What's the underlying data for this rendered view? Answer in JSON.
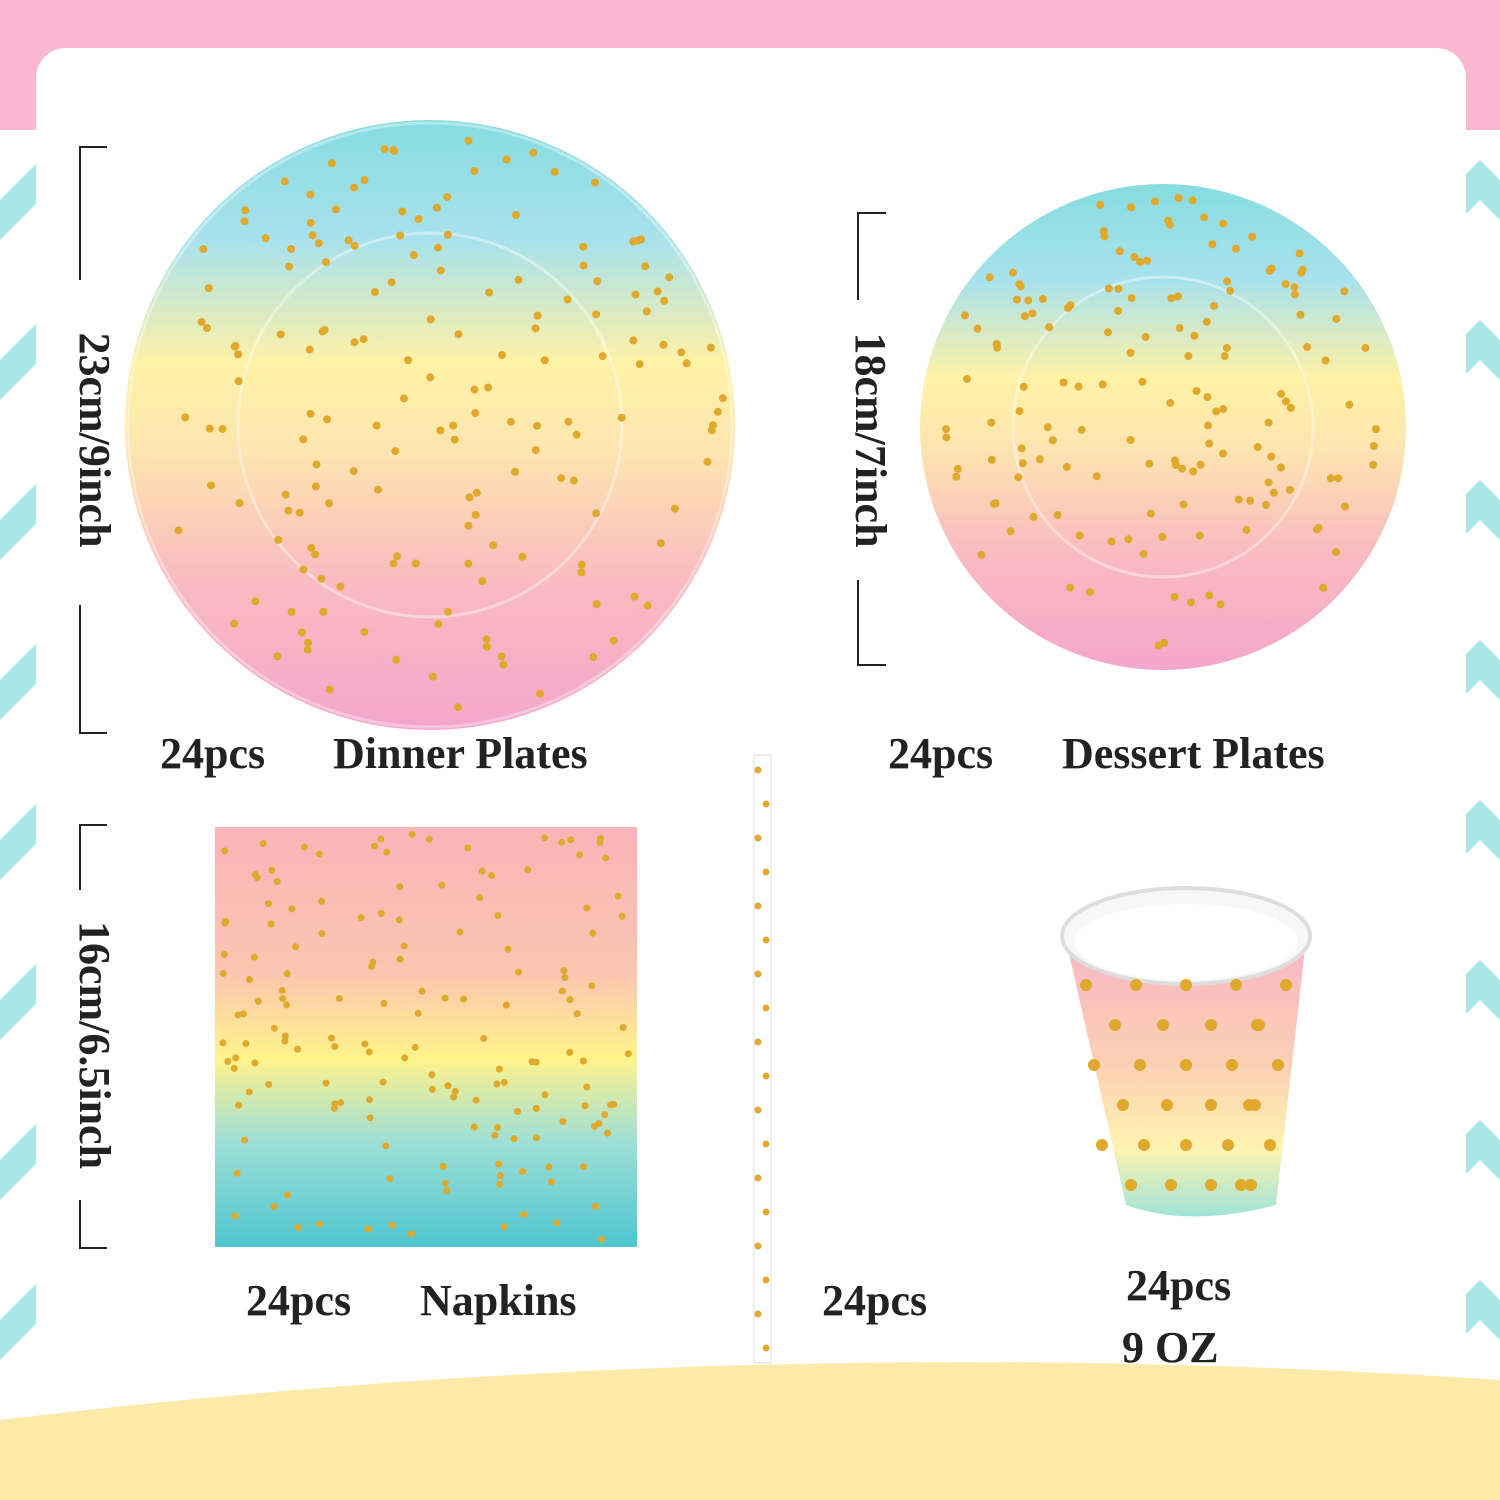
{
  "items": [
    {
      "quantity": "24pcs",
      "name": "Dinner Plates",
      "size": "23cm/9inch"
    },
    {
      "quantity": "24pcs",
      "name": "Dessert Plates",
      "size": "18cm/7inch"
    },
    {
      "quantity": "24pcs",
      "name": "Napkins",
      "size": "16cm/6.5inch"
    },
    {
      "quantity": "24pcs"
    },
    {
      "quantity": "24pcs",
      "capacity": "9  OZ"
    }
  ]
}
